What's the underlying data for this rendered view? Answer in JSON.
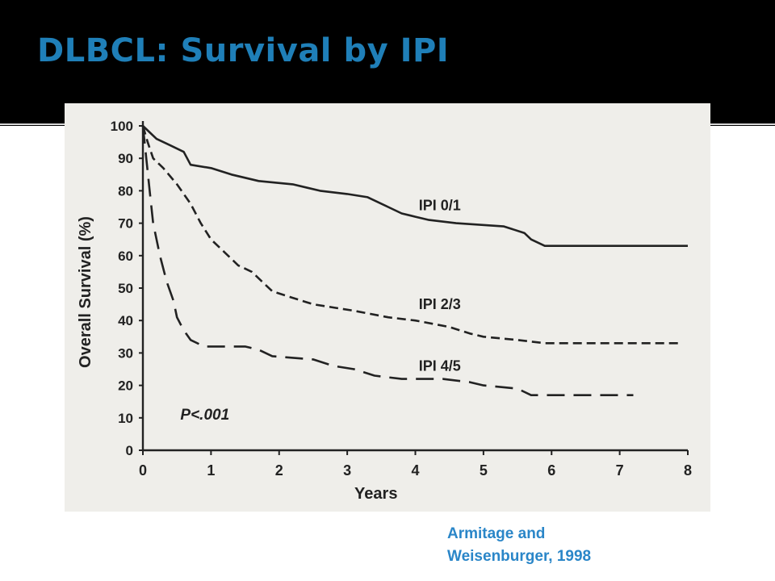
{
  "slide": {
    "title": "DLBCL: Survival by IPI",
    "citation_line1": "Armitage and",
    "citation_line2": "Weisenburger, 1998",
    "title_color": "#1f7fb8",
    "citation_color": "#2a86c8"
  },
  "chart_data": {
    "type": "line",
    "title": "",
    "xlabel": "Years",
    "ylabel": "Overall Survival (%)",
    "xlim": [
      0,
      8
    ],
    "ylim": [
      0,
      100
    ],
    "xticks": [
      0,
      1,
      2,
      3,
      4,
      5,
      6,
      7,
      8
    ],
    "yticks": [
      0,
      10,
      20,
      30,
      40,
      50,
      60,
      70,
      80,
      90,
      100
    ],
    "grid": false,
    "annotation": "P<.001",
    "series": [
      {
        "name": "IPI 0/1",
        "style": "solid",
        "points": [
          [
            0,
            100
          ],
          [
            0.1,
            98
          ],
          [
            0.2,
            96
          ],
          [
            0.4,
            94
          ],
          [
            0.6,
            92
          ],
          [
            0.7,
            88
          ],
          [
            1.0,
            87
          ],
          [
            1.3,
            85
          ],
          [
            1.7,
            83
          ],
          [
            2.2,
            82
          ],
          [
            2.6,
            80
          ],
          [
            3.0,
            79
          ],
          [
            3.3,
            78
          ],
          [
            3.6,
            75
          ],
          [
            3.8,
            73
          ],
          [
            4.0,
            72
          ],
          [
            4.2,
            71
          ],
          [
            4.6,
            70
          ],
          [
            5.3,
            69
          ],
          [
            5.6,
            67
          ],
          [
            5.7,
            65
          ],
          [
            5.9,
            63
          ],
          [
            6.5,
            63
          ],
          [
            7.4,
            63
          ],
          [
            8.0,
            63
          ]
        ]
      },
      {
        "name": "IPI 2/3",
        "style": "dashed",
        "points": [
          [
            0,
            100
          ],
          [
            0.07,
            95
          ],
          [
            0.15,
            90
          ],
          [
            0.3,
            87
          ],
          [
            0.5,
            82
          ],
          [
            0.7,
            76
          ],
          [
            0.85,
            70
          ],
          [
            1.0,
            65
          ],
          [
            1.2,
            61
          ],
          [
            1.4,
            57
          ],
          [
            1.6,
            55
          ],
          [
            1.75,
            52
          ],
          [
            1.9,
            49
          ],
          [
            2.2,
            47
          ],
          [
            2.5,
            45
          ],
          [
            2.8,
            44
          ],
          [
            3.1,
            43
          ],
          [
            3.6,
            41
          ],
          [
            4.0,
            40
          ],
          [
            4.5,
            38
          ],
          [
            4.8,
            36
          ],
          [
            5.0,
            35
          ],
          [
            5.5,
            34
          ],
          [
            5.9,
            33
          ],
          [
            6.5,
            33
          ],
          [
            7.2,
            33
          ],
          [
            7.9,
            33
          ]
        ]
      },
      {
        "name": "IPI 4/5",
        "style": "longdash",
        "points": [
          [
            0,
            100
          ],
          [
            0.05,
            90
          ],
          [
            0.1,
            80
          ],
          [
            0.15,
            70
          ],
          [
            0.25,
            60
          ],
          [
            0.35,
            52
          ],
          [
            0.45,
            46
          ],
          [
            0.5,
            41
          ],
          [
            0.6,
            37
          ],
          [
            0.7,
            34
          ],
          [
            0.9,
            32
          ],
          [
            1.5,
            32
          ],
          [
            1.7,
            31
          ],
          [
            1.9,
            29
          ],
          [
            2.5,
            28
          ],
          [
            2.8,
            26
          ],
          [
            3.1,
            25
          ],
          [
            3.4,
            23
          ],
          [
            3.8,
            22
          ],
          [
            4.4,
            22
          ],
          [
            4.8,
            21
          ],
          [
            5.0,
            20
          ],
          [
            5.5,
            19
          ],
          [
            5.7,
            17
          ],
          [
            6.5,
            17
          ],
          [
            7.2,
            17
          ]
        ]
      }
    ]
  }
}
